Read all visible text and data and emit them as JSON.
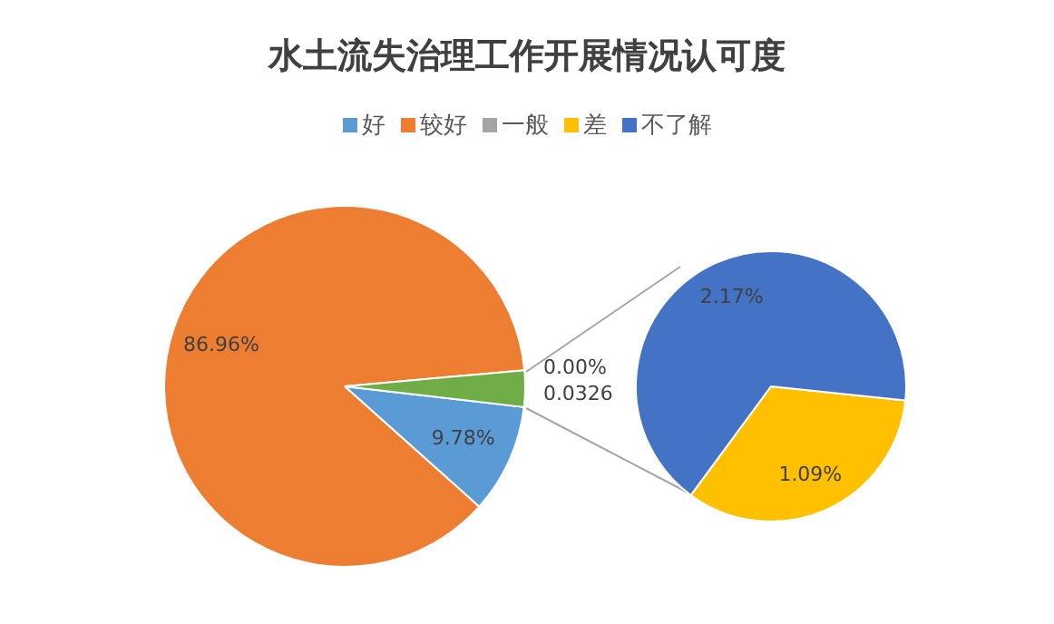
{
  "chart_data": [
    {
      "type": "pie",
      "title": "水土流失治理工作开展情况认可度",
      "legend": "top",
      "categories": [
        "好",
        "较好",
        null
      ],
      "values": [
        0.0978,
        0.8696,
        0.0326
      ],
      "colors": [
        "#5b9bd5",
        "#ed7d31",
        "#70ad47"
      ],
      "value_labels": [
        "9.78%",
        "86.96%",
        "0.0326"
      ]
    },
    {
      "type": "pie",
      "legend": "top",
      "categories": [
        "一般",
        "差",
        "不了解"
      ],
      "values": [
        0,
        0.0109,
        0.0217
      ],
      "colors": [
        "#a5a5a5",
        "#ffc000",
        "#4472c4"
      ],
      "value_labels": [
        "0.00%",
        "1.09%",
        "2.17%"
      ]
    }
  ]
}
